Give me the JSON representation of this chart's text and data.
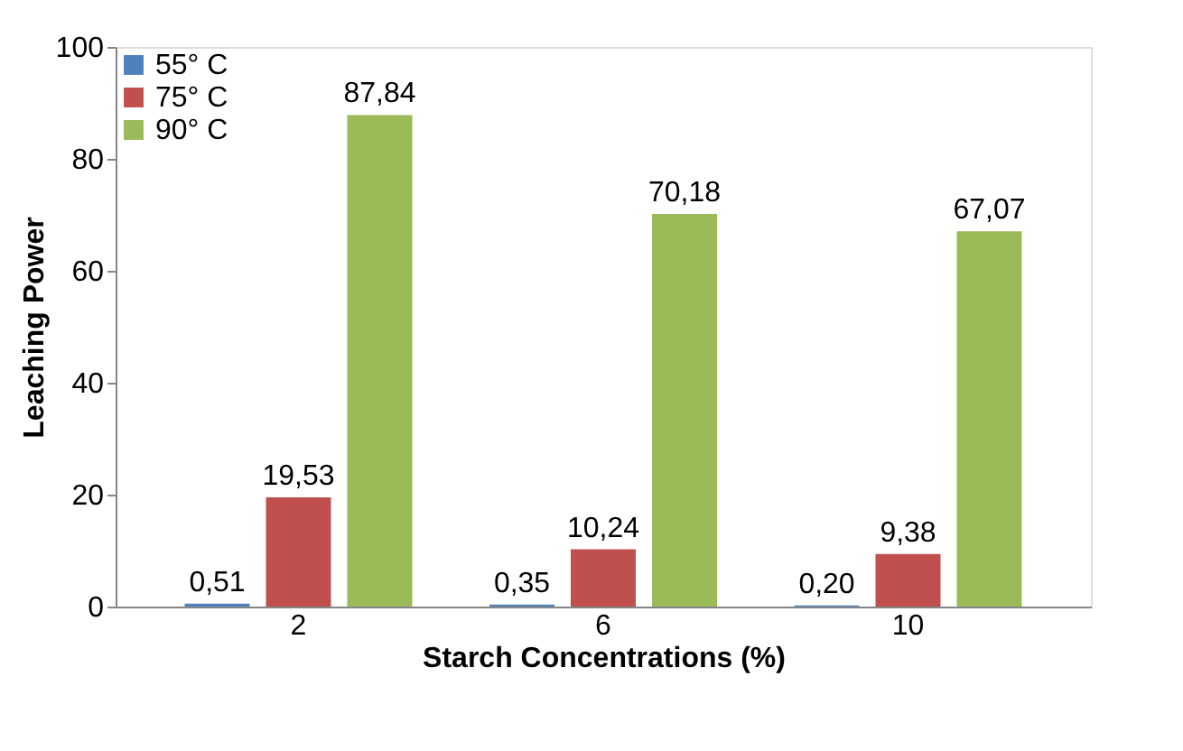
{
  "chart_data": {
    "type": "bar",
    "xlabel": "Starch Concentrations (%)",
    "ylabel": "Leaching Power",
    "categories": [
      "2",
      "6",
      "10"
    ],
    "series": [
      {
        "name": "55° C",
        "color": "#4f81bd",
        "values": [
          0.51,
          0.35,
          0.2
        ],
        "value_labels": [
          "0,51",
          "0,35",
          "0,20"
        ]
      },
      {
        "name": "75° C",
        "color": "#c0504d",
        "values": [
          19.53,
          10.24,
          9.38
        ],
        "value_labels": [
          "19,53",
          "10,24",
          "9,38"
        ]
      },
      {
        "name": "90° C",
        "color": "#9bbb59",
        "values": [
          87.84,
          70.18,
          67.07
        ],
        "value_labels": [
          "87,84",
          "70,18",
          "67,07"
        ]
      }
    ],
    "ylim": [
      0,
      100
    ],
    "yticks": [
      0,
      20,
      40,
      60,
      80,
      100
    ],
    "grid": false,
    "legend": "top left"
  }
}
